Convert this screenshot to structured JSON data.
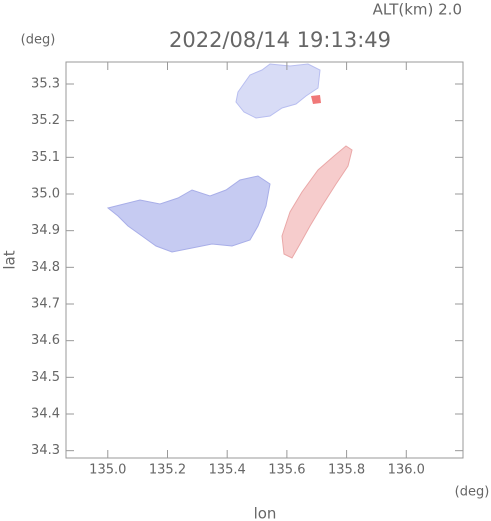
{
  "chart_data": {
    "type": "map",
    "title": "2022/08/14 19:13:49",
    "subtitle": "ALT(km) 2.0",
    "x_label": "lon",
    "x_unit": "(deg)",
    "y_label": "lat",
    "y_unit": "(deg)",
    "xlim": [
      134.86,
      136.19
    ],
    "xticks": [
      {
        "value": 135,
        "label": "135.0"
      },
      135.2,
      135.4,
      135.6,
      135.8,
      {
        "value": 136,
        "label": "136.0"
      }
    ],
    "ylim": [
      34.28,
      35.36
    ],
    "yticks": [
      34.3,
      34.4,
      34.5,
      34.6,
      34.7,
      34.8,
      34.9,
      {
        "value": 35,
        "label": "35.0"
      },
      35.1,
      35.2,
      35.3
    ]
  }
}
